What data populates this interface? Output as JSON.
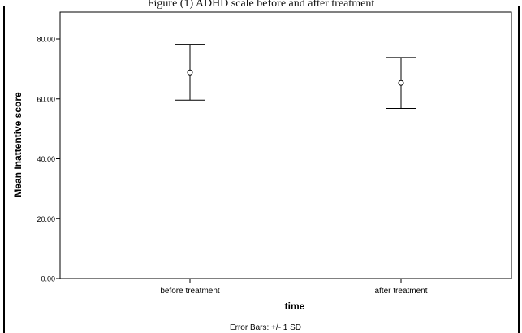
{
  "figure": {
    "title": "Figure (1) ADHD scale before and after treatment"
  },
  "chart_data": {
    "type": "scatter",
    "title": "Figure (1) ADHD scale before and after treatment",
    "xlabel": "time",
    "ylabel": "Mean Inattentive score",
    "categories": [
      "before treatment",
      "after treatment"
    ],
    "series": [
      {
        "values": [
          68.8,
          65.3
        ],
        "error_low": [
          59.6,
          56.8
        ],
        "error_high": [
          78.2,
          73.8
        ]
      }
    ],
    "yticks": [
      "0.00",
      "20.00",
      "40.00",
      "60.00",
      "80.00"
    ],
    "ytick_values": [
      0,
      20,
      40,
      60,
      80
    ],
    "ylim": [
      0,
      80
    ],
    "grid": false,
    "footnote": "Error Bars: +/- 1 SD",
    "colors": {
      "marks": "#000000",
      "background": "#ffffff"
    }
  }
}
